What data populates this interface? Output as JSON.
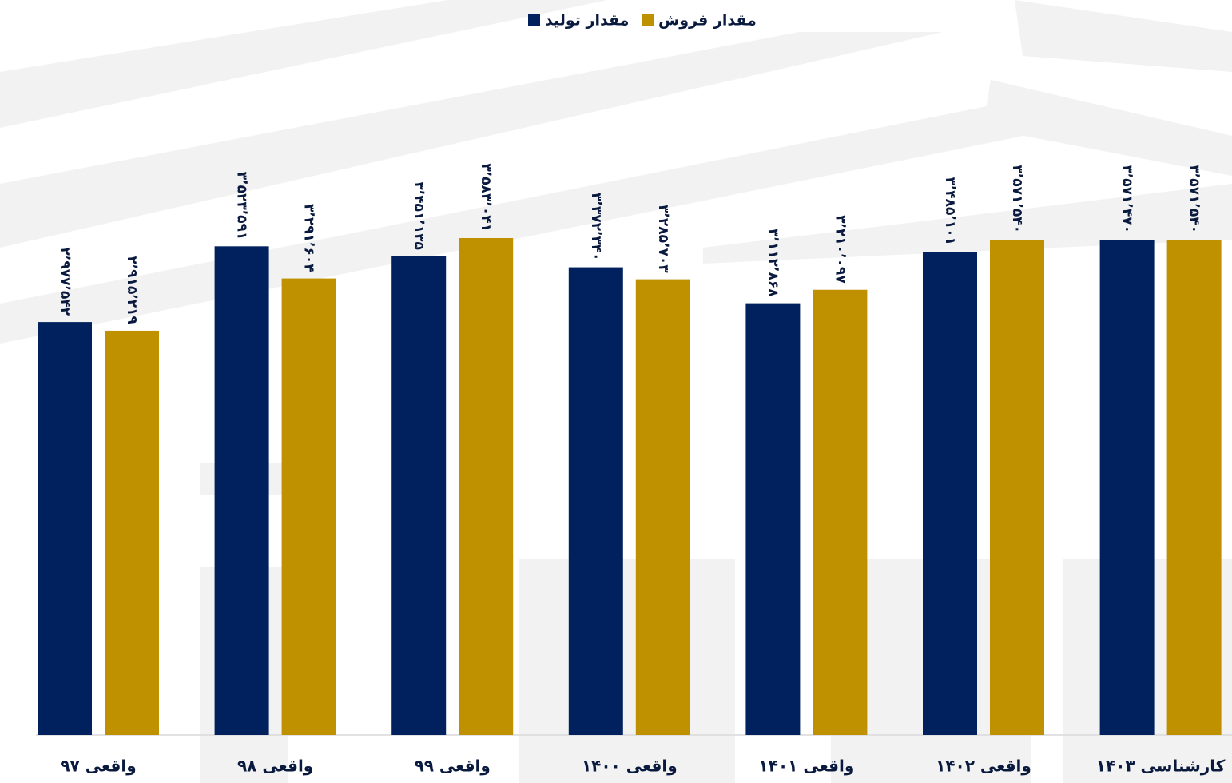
{
  "chart_data": {
    "type": "bar",
    "categories": [
      "واقعی ۹۷",
      "واقعی ۹۸",
      "واقعی ۹۹",
      "واقعی ۱۴۰۰",
      "واقعی ۱۴۰۱",
      "واقعی ۱۴۰۲",
      "کارشناسی ۱۴۰۳"
    ],
    "series": [
      {
        "name": "مقدار تولید",
        "color": "#00215e",
        "values": [
          2977542,
          3523591,
          3451135,
          3372340,
          3112868,
          3485101,
          3571470
        ],
        "value_labels": [
          "۲٬۹۷۷٬۵۴۲",
          "۳٬۵۲۳٬۵۹۱",
          "۳٬۴۵۱٬۱۳۵",
          "۳٬۳۷۲٬۳۴۰",
          "۳٬۱۱۲٬۸۶۸",
          "۳٬۴۸۵٬۱۰۱",
          "۳٬۵۷۱٬۴۷۰"
        ]
      },
      {
        "name": "مقدار فروش",
        "color": "#bf9000",
        "values": [
          2915219,
          3291604,
          3583041,
          3285703,
          3210097,
          3571540,
          3571540
        ],
        "value_labels": [
          "۲٬۹۱۵٬۲۱۹",
          "۳٬۲۹۱٬۶۰۴",
          "۳٬۵۸۳٬۰۴۱",
          "۳٬۲۸۵٬۷۰۳",
          "۳٬۲۱۰٬۰۹۷",
          "۳٬۵۷۱٬۵۴۰",
          "۳٬۵۷۱٬۵۴۰"
        ]
      }
    ]
  }
}
